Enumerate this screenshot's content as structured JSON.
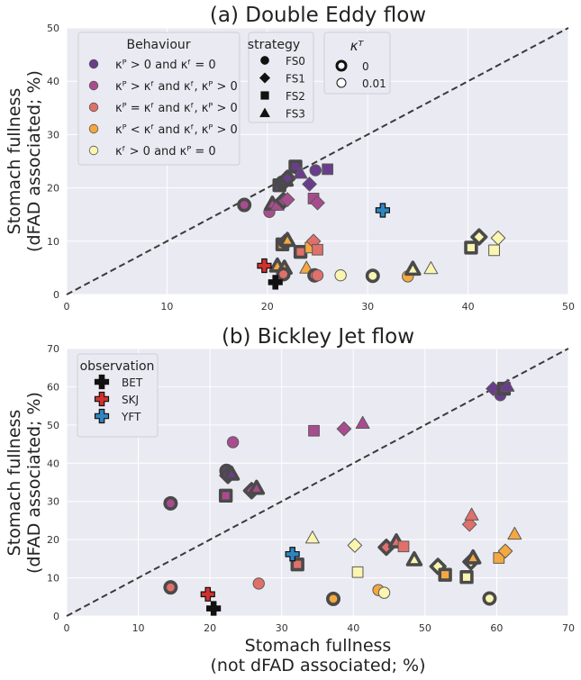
{
  "colors": {
    "panel_bg": "#EAEAF2",
    "grid": "#FFFFFF",
    "diag": "#3A3A3A",
    "thick_edge": "#4A4A4A",
    "thin_edge": "#5A5A5A",
    "BET": "#111111",
    "SKJ": "#D0312D",
    "YFT": "#2E86C1",
    "behaviour": [
      "#6A3D8C",
      "#A94C8F",
      "#E0706A",
      "#F5A840",
      "#FAF5B0"
    ]
  },
  "legends": {
    "behaviour": {
      "title": "Behaviour",
      "entries": [
        "κᴾ > 0 and κᶠ = 0",
        "κᴾ > κᶠ and κᶠ, κᴾ > 0",
        "κᴾ = κᶠ and κᶠ, κᴾ > 0",
        "κᴾ < κᶠ and κᶠ, κᴾ > 0",
        "κᶠ > 0 and κᴾ = 0"
      ]
    },
    "strategy": {
      "title": "strategy",
      "entries": [
        "FS0",
        "FS1",
        "FS2",
        "FS3"
      ],
      "markers": [
        "circle",
        "diamond",
        "square",
        "triangle"
      ]
    },
    "kappaT": {
      "title": "κᵀ",
      "entries": [
        "0",
        "0.01"
      ]
    },
    "observation": {
      "title": "observation",
      "entries": [
        "BET",
        "SKJ",
        "YFT"
      ]
    }
  },
  "chart_data": [
    {
      "type": "scatter",
      "title": "(a) Double Eddy flow",
      "xlabel": "",
      "ylabel": [
        "Stomach fullness",
        "(dFAD associated; %)"
      ],
      "xlim": [
        0,
        50
      ],
      "ylim": [
        0,
        50
      ],
      "xticks": [
        "0",
        "10",
        "20",
        "30",
        "40",
        "50"
      ],
      "yticks": [
        "0",
        "10",
        "20",
        "30",
        "40",
        "50"
      ],
      "diagonal": "y = x",
      "grid": true,
      "points": [
        {
          "x": 17.7,
          "y": 16.8,
          "b": 1,
          "s": "circle",
          "k": 0
        },
        {
          "x": 20.2,
          "y": 15.5,
          "b": 1,
          "s": "circle",
          "k": 1
        },
        {
          "x": 20.5,
          "y": 17.0,
          "b": 1,
          "s": "triangle",
          "k": 0
        },
        {
          "x": 21.0,
          "y": 16.8,
          "b": 1,
          "s": "triangle",
          "k": 1
        },
        {
          "x": 21.6,
          "y": 17.6,
          "b": 1,
          "s": "diamond",
          "k": 0
        },
        {
          "x": 22.0,
          "y": 17.8,
          "b": 1,
          "s": "diamond",
          "k": 1
        },
        {
          "x": 21.2,
          "y": 20.5,
          "b": 0,
          "s": "square",
          "k": 0
        },
        {
          "x": 21.5,
          "y": 21.0,
          "b": 0,
          "s": "circle",
          "k": 0
        },
        {
          "x": 21.8,
          "y": 21.5,
          "b": 0,
          "s": "triangle",
          "k": 0
        },
        {
          "x": 22.0,
          "y": 21.8,
          "b": 0,
          "s": "diamond",
          "k": 0
        },
        {
          "x": 22.8,
          "y": 24.0,
          "b": 0,
          "s": "square",
          "k": 0
        },
        {
          "x": 23.3,
          "y": 22.8,
          "b": 0,
          "s": "triangle",
          "k": 1
        },
        {
          "x": 24.2,
          "y": 20.7,
          "b": 0,
          "s": "diamond",
          "k": 1
        },
        {
          "x": 24.8,
          "y": 23.3,
          "b": 0,
          "s": "circle",
          "k": 1
        },
        {
          "x": 26.0,
          "y": 23.5,
          "b": 0,
          "s": "square",
          "k": 1
        },
        {
          "x": 24.6,
          "y": 18.0,
          "b": 1,
          "s": "square",
          "k": 1
        },
        {
          "x": 25.0,
          "y": 17.2,
          "b": 1,
          "s": "diamond",
          "k": 1
        },
        {
          "x": 21.5,
          "y": 9.4,
          "b": 3,
          "s": "square",
          "k": 0
        },
        {
          "x": 21.8,
          "y": 9.8,
          "b": 3,
          "s": "diamond",
          "k": 0
        },
        {
          "x": 22.0,
          "y": 10.2,
          "b": 3,
          "s": "triangle",
          "k": 0
        },
        {
          "x": 23.3,
          "y": 8.0,
          "b": 2,
          "s": "square",
          "k": 0
        },
        {
          "x": 24.3,
          "y": 8.8,
          "b": 3,
          "s": "square",
          "k": 1
        },
        {
          "x": 24.6,
          "y": 10.0,
          "b": 2,
          "s": "diamond",
          "k": 1
        },
        {
          "x": 25.0,
          "y": 8.4,
          "b": 2,
          "s": "square",
          "k": 1
        },
        {
          "x": 21.0,
          "y": 5.4,
          "b": 3,
          "s": "triangle",
          "k": 0
        },
        {
          "x": 21.7,
          "y": 5.0,
          "b": 3,
          "s": "triangle",
          "k": 0
        },
        {
          "x": 21.6,
          "y": 3.8,
          "b": 2,
          "s": "circle",
          "k": 0
        },
        {
          "x": 23.9,
          "y": 5.0,
          "b": 3,
          "s": "triangle",
          "k": 1
        },
        {
          "x": 24.7,
          "y": 3.6,
          "b": 2,
          "s": "circle",
          "k": 0
        },
        {
          "x": 25.0,
          "y": 3.6,
          "b": 2,
          "s": "circle",
          "k": 1
        },
        {
          "x": 27.3,
          "y": 3.6,
          "b": 4,
          "s": "circle",
          "k": 1
        },
        {
          "x": 30.5,
          "y": 3.5,
          "b": 4,
          "s": "circle",
          "k": 0
        },
        {
          "x": 34.0,
          "y": 3.4,
          "b": 3,
          "s": "circle",
          "k": 1
        },
        {
          "x": 34.5,
          "y": 4.8,
          "b": 4,
          "s": "triangle",
          "k": 0
        },
        {
          "x": 36.3,
          "y": 4.9,
          "b": 4,
          "s": "triangle",
          "k": 1
        },
        {
          "x": 40.3,
          "y": 8.8,
          "b": 4,
          "s": "square",
          "k": 0
        },
        {
          "x": 41.1,
          "y": 10.8,
          "b": 4,
          "s": "diamond",
          "k": 0
        },
        {
          "x": 42.6,
          "y": 8.3,
          "b": 4,
          "s": "square",
          "k": 1
        },
        {
          "x": 43.0,
          "y": 10.6,
          "b": 4,
          "s": "diamond",
          "k": 1
        }
      ],
      "observations": [
        {
          "name": "BET",
          "x": 20.8,
          "y": 2.3
        },
        {
          "name": "SKJ",
          "x": 19.7,
          "y": 5.4
        },
        {
          "name": "YFT",
          "x": 31.5,
          "y": 15.8
        }
      ]
    },
    {
      "type": "scatter",
      "title": "(b) Bickley Jet flow",
      "xlabel": [
        "Stomach fullness",
        "(not dFAD associated; %)"
      ],
      "ylabel": [
        "Stomach fullness",
        "(dFAD associated; %)"
      ],
      "xlim": [
        0,
        70
      ],
      "ylim": [
        0,
        70
      ],
      "xticks": [
        "0",
        "10",
        "20",
        "30",
        "40",
        "50",
        "60",
        "70"
      ],
      "yticks": [
        "0",
        "10",
        "20",
        "30",
        "40",
        "50",
        "60",
        "70"
      ],
      "diagonal": "y = x",
      "grid": true,
      "points": [
        {
          "x": 59.5,
          "y": 59.5,
          "b": 0,
          "s": "diamond",
          "k": 1
        },
        {
          "x": 60.5,
          "y": 57.8,
          "b": 0,
          "s": "circle",
          "k": 1
        },
        {
          "x": 61.0,
          "y": 59.5,
          "b": 0,
          "s": "square",
          "k": 0
        },
        {
          "x": 61.5,
          "y": 60.2,
          "b": 0,
          "s": "triangle",
          "k": 1
        },
        {
          "x": 22.3,
          "y": 38.0,
          "b": 0,
          "s": "circle",
          "k": 0
        },
        {
          "x": 22.5,
          "y": 36.8,
          "b": 0,
          "s": "diamond",
          "k": 0
        },
        {
          "x": 23.0,
          "y": 37.2,
          "b": 0,
          "s": "triangle",
          "k": 0
        },
        {
          "x": 23.2,
          "y": 45.5,
          "b": 1,
          "s": "circle",
          "k": 1
        },
        {
          "x": 22.2,
          "y": 31.5,
          "b": 1,
          "s": "square",
          "k": 0
        },
        {
          "x": 25.8,
          "y": 32.8,
          "b": 1,
          "s": "diamond",
          "k": 0
        },
        {
          "x": 26.5,
          "y": 33.5,
          "b": 1,
          "s": "triangle",
          "k": 0
        },
        {
          "x": 34.5,
          "y": 48.5,
          "b": 1,
          "s": "square",
          "k": 1
        },
        {
          "x": 38.7,
          "y": 49.0,
          "b": 1,
          "s": "diamond",
          "k": 1
        },
        {
          "x": 41.3,
          "y": 50.5,
          "b": 1,
          "s": "triangle",
          "k": 1
        },
        {
          "x": 14.5,
          "y": 29.5,
          "b": 1,
          "s": "circle",
          "k": 0
        },
        {
          "x": 14.5,
          "y": 7.5,
          "b": 2,
          "s": "circle",
          "k": 0
        },
        {
          "x": 26.8,
          "y": 8.5,
          "b": 2,
          "s": "circle",
          "k": 1
        },
        {
          "x": 32.2,
          "y": 13.5,
          "b": 2,
          "s": "square",
          "k": 0
        },
        {
          "x": 34.3,
          "y": 20.5,
          "b": 4,
          "s": "triangle",
          "k": 1
        },
        {
          "x": 40.2,
          "y": 18.5,
          "b": 4,
          "s": "diamond",
          "k": 1
        },
        {
          "x": 40.6,
          "y": 11.5,
          "b": 4,
          "s": "square",
          "k": 1
        },
        {
          "x": 37.2,
          "y": 4.5,
          "b": 3,
          "s": "circle",
          "k": 0
        },
        {
          "x": 43.5,
          "y": 6.8,
          "b": 3,
          "s": "circle",
          "k": 1
        },
        {
          "x": 44.3,
          "y": 6.1,
          "b": 4,
          "s": "circle",
          "k": 1
        },
        {
          "x": 44.6,
          "y": 18.0,
          "b": 2,
          "s": "diamond",
          "k": 0
        },
        {
          "x": 46.0,
          "y": 19.5,
          "b": 2,
          "s": "triangle",
          "k": 0
        },
        {
          "x": 47.0,
          "y": 18.2,
          "b": 2,
          "s": "square",
          "k": 1
        },
        {
          "x": 48.5,
          "y": 14.8,
          "b": 4,
          "s": "triangle",
          "k": 0
        },
        {
          "x": 51.8,
          "y": 13.0,
          "b": 4,
          "s": "diamond",
          "k": 0
        },
        {
          "x": 52.8,
          "y": 10.8,
          "b": 3,
          "s": "square",
          "k": 0
        },
        {
          "x": 55.8,
          "y": 10.2,
          "b": 4,
          "s": "square",
          "k": 0
        },
        {
          "x": 56.2,
          "y": 24.0,
          "b": 2,
          "s": "diamond",
          "k": 1
        },
        {
          "x": 56.5,
          "y": 26.5,
          "b": 2,
          "s": "triangle",
          "k": 1
        },
        {
          "x": 56.4,
          "y": 14.2,
          "b": 4,
          "s": "diamond",
          "k": 0
        },
        {
          "x": 56.7,
          "y": 15.3,
          "b": 3,
          "s": "triangle",
          "k": 0
        },
        {
          "x": 59.0,
          "y": 4.6,
          "b": 4,
          "s": "circle",
          "k": 0
        },
        {
          "x": 60.3,
          "y": 15.2,
          "b": 3,
          "s": "square",
          "k": 1
        },
        {
          "x": 61.2,
          "y": 17.0,
          "b": 3,
          "s": "diamond",
          "k": 1
        },
        {
          "x": 62.5,
          "y": 21.5,
          "b": 3,
          "s": "triangle",
          "k": 1
        }
      ],
      "observations": [
        {
          "name": "BET",
          "x": 20.5,
          "y": 2.0
        },
        {
          "name": "SKJ",
          "x": 19.7,
          "y": 5.7
        },
        {
          "name": "YFT",
          "x": 31.5,
          "y": 16.2
        }
      ]
    }
  ]
}
